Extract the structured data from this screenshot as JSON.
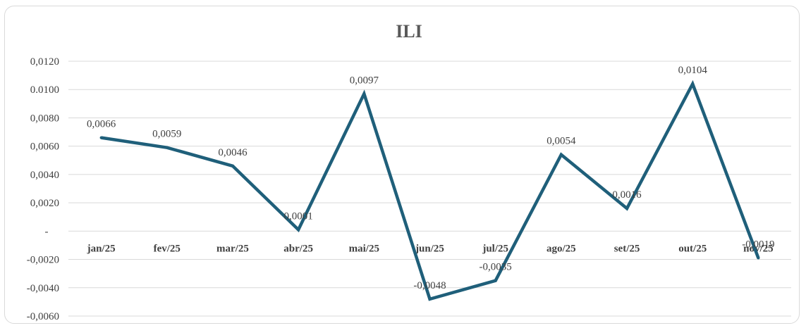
{
  "chart_data": {
    "type": "line",
    "title": "ILI",
    "xlabel": "",
    "ylabel": "",
    "categories": [
      "jan/25",
      "fev/25",
      "mar/25",
      "abr/25",
      "mai/25",
      "jun/25",
      "jul/25",
      "ago/25",
      "set/25",
      "out/25",
      "nov/25"
    ],
    "series": [
      {
        "values": [
          0.0066,
          0.0059,
          0.0046,
          0.0001,
          0.0097,
          -0.0048,
          -0.0035,
          0.0054,
          0.0016,
          0.0104,
          -0.0019
        ],
        "labels": [
          "0,0066",
          "0,0059",
          "0,0046",
          "0,0001",
          "0,0097",
          "-0,0048",
          "-0,0035",
          "0,0054",
          "0,0016",
          "0,0104",
          "-0,0019"
        ],
        "color": "#1f5f7a"
      }
    ],
    "ylim": [
      -0.006,
      0.012
    ],
    "yticks": [
      {
        "value": 0.012,
        "label": "0,0120"
      },
      {
        "value": 0.01,
        "label": "0.0100"
      },
      {
        "value": 0.008,
        "label": "0,0080"
      },
      {
        "value": 0.006,
        "label": "0,0060"
      },
      {
        "value": 0.004,
        "label": "0,0040"
      },
      {
        "value": 0.002,
        "label": "0,0020"
      },
      {
        "value": 0,
        "label": "-"
      },
      {
        "value": -0.002,
        "label": "-0,0020"
      },
      {
        "value": -0.004,
        "label": "-0,0040"
      },
      {
        "value": -0.006,
        "label": "-0,0060"
      }
    ],
    "grid": true,
    "legend": "none"
  }
}
